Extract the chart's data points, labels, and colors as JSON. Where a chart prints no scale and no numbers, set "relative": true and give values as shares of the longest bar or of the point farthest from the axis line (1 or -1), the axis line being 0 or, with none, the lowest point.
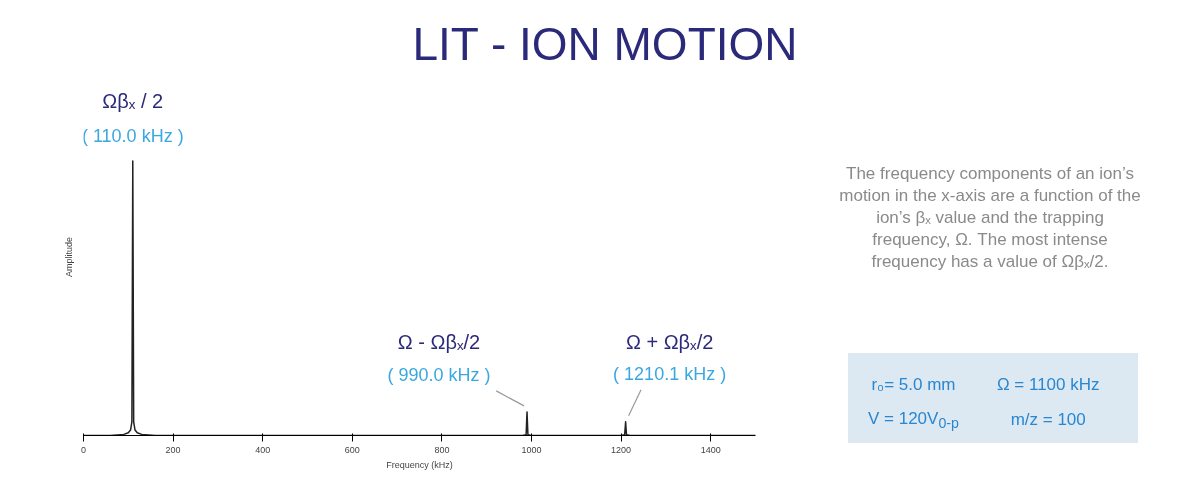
{
  "chart_data": {
    "type": "line",
    "title": "LIT - ION MOTION",
    "xlabel": "Frequency (kHz)",
    "ylabel": "Amplitude",
    "relative": true,
    "xlim": [
      0,
      1500
    ],
    "xticks": [
      0,
      200,
      400,
      600,
      800,
      1000,
      1200,
      1400
    ],
    "tick_labels": "x",
    "grid": false,
    "x": [
      0,
      60,
      90,
      100,
      105,
      108,
      110,
      112,
      115,
      120,
      130,
      160,
      980,
      988,
      990,
      992,
      1000,
      1200,
      1208,
      1210.1,
      1212,
      1220,
      1500
    ],
    "series": [
      {
        "color": "#222222",
        "values": [
          0,
          0,
          0.004,
          0.01,
          0.02,
          0.05,
          1,
          0.05,
          0.02,
          0.01,
          0.004,
          0,
          0,
          0.003,
          0.086,
          0.003,
          0,
          0,
          0.003,
          0.05,
          0.003,
          0,
          0
        ]
      }
    ],
    "annotations": [
      "Ωβₓ / 2",
      {
        "text": "( 110.0 kHz )",
        "x": 110,
        "y": 1
      },
      "Ω - Ωβₓ/2",
      {
        "text": "( 990.0 kHz )",
        "x": 990,
        "y": 0.086
      },
      "Ω + Ωβₓ/2",
      {
        "text": "( 1210.1 kHz )",
        "x": 1210.1,
        "y": 0.05
      },
      "The frequency components of an ion’s motion in the x-axis are a function of the ion’s βₓ value and the trapping frequency, Ω. The most intense frequency has a value of Ωβₓ/2.",
      "r₀= 5.0 mm",
      "Ω = 1100 kHz",
      "V = 120V$_{0-p}$",
      "m/z = 100"
    ]
  }
}
